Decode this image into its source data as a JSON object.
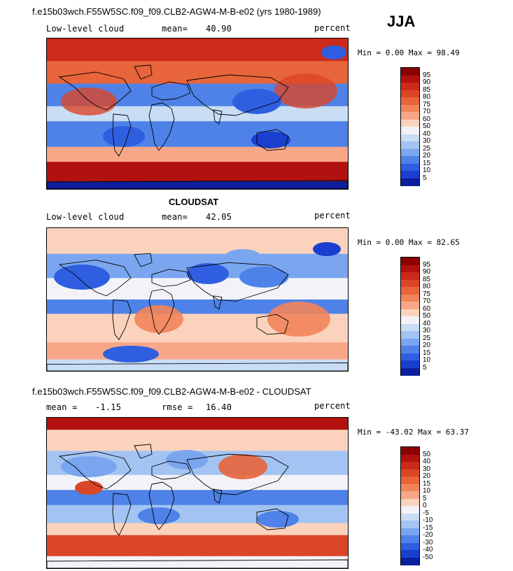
{
  "season": "JJA",
  "panels": [
    {
      "id": "model",
      "header": "f.e15b03wch.F55W5SC.f09_f09.CLB2-AGW4-M-B-e02 (yrs 1980-1989)",
      "variable": "Low-level cloud",
      "stat_label": "mean=",
      "stat_value": "40.90",
      "units": "percent",
      "minmax": "Min =   0.00 Max =  98.49",
      "min": 0.0,
      "max": 98.49,
      "mean": 40.9
    },
    {
      "id": "obs",
      "header": "CLOUDSAT",
      "variable": "Low-level cloud",
      "stat_label": "mean=",
      "stat_value": "42.05",
      "units": "percent",
      "minmax": "Min =   0.00 Max =  82.65",
      "min": 0.0,
      "max": 82.65,
      "mean": 42.05
    },
    {
      "id": "diff",
      "header": "f.e15b03wch.F55W5SC.f09_f09.CLB2-AGW4-M-B-e02 - CLOUDSAT",
      "variable": "mean =",
      "stat_label": "",
      "stat_value": "-1.15",
      "rmse_label": "rmse =",
      "rmse_value": "16.40",
      "units": "percent",
      "minmax": "Min = -43.02 Max =  63.37",
      "min": -43.02,
      "max": 63.37,
      "mean": -1.15,
      "rmse": 16.4
    }
  ],
  "legend_abs": {
    "labels": [
      "95",
      "90",
      "85",
      "80",
      "75",
      "70",
      "60",
      "50",
      "40",
      "30",
      "25",
      "20",
      "15",
      "10",
      "5"
    ],
    "colors": [
      "#8b0000",
      "#b2120f",
      "#cc2a1a",
      "#dc4628",
      "#e8643a",
      "#f2845a",
      "#f7a788",
      "#fbd3bd",
      "#f3f3f7",
      "#c9ddf5",
      "#a3c4f2",
      "#7aa6ef",
      "#4e82e8",
      "#2f5fe0",
      "#1a3fcf",
      "#0c1f9c"
    ]
  },
  "legend_diff": {
    "labels": [
      "50",
      "40",
      "30",
      "20",
      "15",
      "10",
      "5",
      "0",
      "-5",
      "-10",
      "-15",
      "-20",
      "-30",
      "-40",
      "-50"
    ],
    "colors": [
      "#8b0000",
      "#b2120f",
      "#cc2a1a",
      "#dc4628",
      "#e8643a",
      "#f2845a",
      "#f7a788",
      "#fbd3bd",
      "#f3f3f7",
      "#c9ddf5",
      "#a3c4f2",
      "#7aa6ef",
      "#4e82e8",
      "#2f5fe0",
      "#1a3fcf",
      "#0c1f9c"
    ]
  }
}
